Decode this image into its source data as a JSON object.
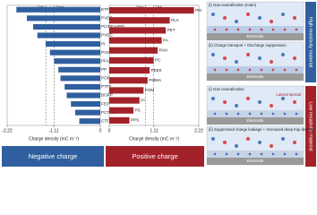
{
  "chart_data": [
    {
      "type": "bar",
      "orientation": "horizontal",
      "label": "Negative charge",
      "x_label": "Charge density (mC m⁻²)",
      "color": "#2f5f9e",
      "band_color": "#2f5f9e",
      "categories": [
        "ETFE",
        "PVDF",
        "P(VDF-HFP)",
        "PVDC",
        "PI",
        "PVC",
        "PFA",
        "PP",
        "POF",
        "PTFE",
        "BOPP",
        "FEP",
        "PCTFE",
        "CTFE"
      ],
      "values": [
        -2.0,
        -1.75,
        -1.6,
        -1.5,
        -1.3,
        -1.2,
        -1.1,
        -1.0,
        -0.95,
        -0.85,
        -0.8,
        -0.7,
        -0.6,
        -0.5
      ],
      "xlim": [
        -2.22,
        0
      ],
      "xticks": [
        -2.22,
        -1.11,
        0
      ],
      "reference_lines": [
        {
          "label": "Qsh",
          "value": -1.3
        },
        {
          "label": "Qpm",
          "value": -1.1
        }
      ]
    },
    {
      "type": "bar",
      "orientation": "horizontal",
      "label": "Positive charge",
      "x_label": "Charge density (mC m⁻²)",
      "color": "#a3222a",
      "band_color": "#a3222a",
      "categories": [
        "PEI",
        "PLA",
        "PET",
        "PA",
        "PAN",
        "PC",
        "PEEK",
        "PMMA",
        "POM",
        "PI",
        "PS",
        "PPS"
      ],
      "values": [
        2.1,
        1.5,
        1.4,
        1.3,
        1.2,
        1.1,
        1.0,
        0.95,
        0.85,
        0.75,
        0.6,
        0.5
      ],
      "xlim": [
        0,
        2.22
      ],
      "xticks": [
        0,
        1.11,
        2.22
      ],
      "reference_lines": [
        {
          "label": "Qpm",
          "value": 0.9
        },
        {
          "label": "Qsh",
          "value": 1.1
        }
      ]
    }
  ],
  "schematic": {
    "groups": [
      {
        "label": "High resistivity material",
        "color": "#2f5f9e",
        "panels": [
          {
            "title": "(i) Gas neutralization (main)",
            "electrode": "Electrode"
          },
          {
            "title": "(ii) Charge transport + Discharge suppression",
            "electrode": "Electrode"
          }
        ]
      },
      {
        "label": "Low resistivity material",
        "color": "#a3222a",
        "panels": [
          {
            "title": "(i) Gas neutralization",
            "note": "Lateral spread",
            "electrode": "Electrode"
          },
          {
            "title": "(ii) Suppressed charge leakage + Increased deep trap density",
            "electrode": "Electrode"
          }
        ]
      }
    ]
  }
}
